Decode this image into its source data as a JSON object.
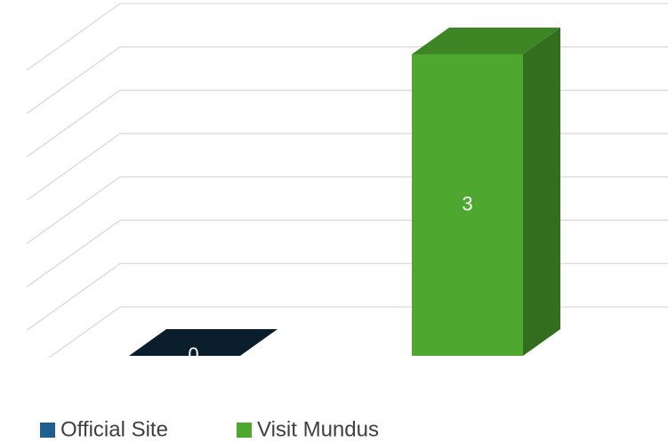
{
  "chart_data": {
    "type": "bar3d",
    "categories": [
      ""
    ],
    "series": [
      {
        "name": "Official Site",
        "color": "#0a1e2c",
        "values": [
          0
        ]
      },
      {
        "name": "Visit Mundus",
        "color": "#4ea72e",
        "values": [
          3
        ]
      }
    ],
    "ylim": [
      0,
      3.5
    ],
    "yticks": [
      0,
      0.5,
      1,
      1.5,
      2,
      2.5,
      3,
      3.5
    ],
    "grid": true,
    "legend": "bottom"
  }
}
